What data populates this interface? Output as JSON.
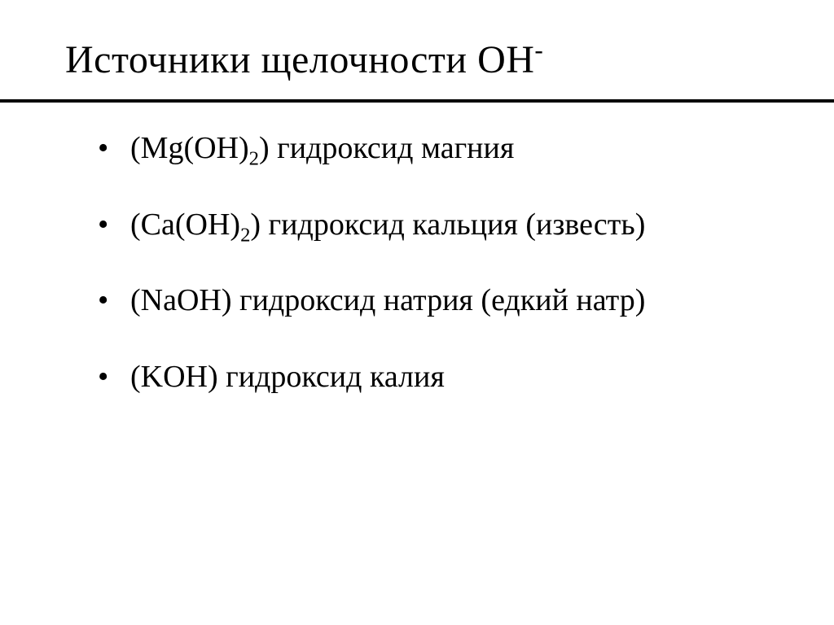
{
  "slide": {
    "title_prefix": "Источники щелочности   OH",
    "title_sup": "-",
    "bullets": [
      {
        "formula_pre": "(Mg(OH)",
        "formula_sub": "2",
        "formula_post": ")  гидроксид магния"
      },
      {
        "formula_pre": "(Ca(OH)",
        "formula_sub": "2",
        "formula_post": ")  гидроксид кальция (известь)"
      },
      {
        "formula_pre": "(NaOH)  гидроксид натрия (едкий натр)",
        "formula_sub": "",
        "formula_post": ""
      },
      {
        "formula_pre": "(KOH) гидроксид калия",
        "formula_sub": "",
        "formula_post": ""
      }
    ]
  },
  "style": {
    "background_color": "#ffffff",
    "text_color": "#000000",
    "title_fontsize": 48,
    "body_fontsize": 38,
    "hr_color": "#000000",
    "hr_thickness": 4,
    "font_family": "Times New Roman"
  }
}
